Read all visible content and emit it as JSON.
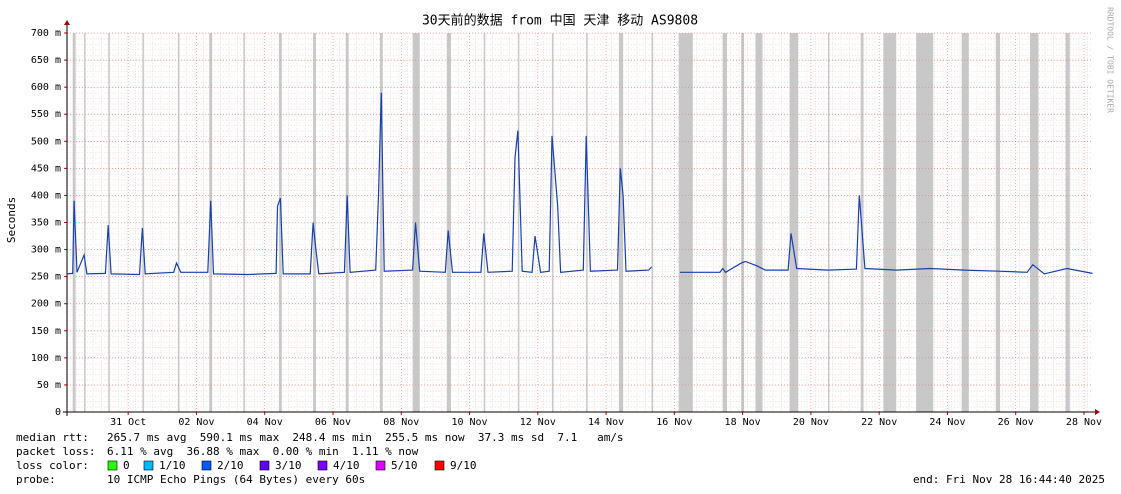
{
  "chart_data": {
    "type": "line",
    "title": "30天前的数据 from 中国 天津 移动 AS9808",
    "y_label": "Seconds",
    "side_text": "RRDTOOL / TOBI OETIKER",
    "xlim": [
      "2025-10-29T05:00",
      "2025-11-28T06:20"
    ],
    "ylim": [
      0,
      700
    ],
    "yticks": [
      0,
      {
        "value": 50,
        "label": "50 m"
      },
      {
        "value": 100,
        "label": "100 m"
      },
      {
        "value": 150,
        "label": "150 m"
      },
      {
        "value": 200,
        "label": "200 m"
      },
      {
        "value": 250,
        "label": "250 m"
      },
      {
        "value": 300,
        "label": "300 m"
      },
      {
        "value": 350,
        "label": "350 m"
      },
      {
        "value": 400,
        "label": "400 m"
      },
      {
        "value": 450,
        "label": "450 m"
      },
      {
        "value": 500,
        "label": "500 m"
      },
      {
        "value": 550,
        "label": "550 m"
      },
      {
        "value": 600,
        "label": "600 m"
      },
      {
        "value": 650,
        "label": "650 m"
      },
      {
        "value": 700,
        "label": "700 m"
      }
    ],
    "xticks": [
      {
        "value": "2025-10-31T00:00",
        "label": "31 Oct"
      },
      {
        "value": "2025-11-02T00:00",
        "label": "02 Nov"
      },
      {
        "value": "2025-11-04T00:00",
        "label": "04 Nov"
      },
      {
        "value": "2025-11-06T00:00",
        "label": "06 Nov"
      },
      {
        "value": "2025-11-08T00:00",
        "label": "08 Nov"
      },
      {
        "value": "2025-11-10T00:00",
        "label": "10 Nov"
      },
      {
        "value": "2025-11-12T00:00",
        "label": "12 Nov"
      },
      {
        "value": "2025-11-14T00:00",
        "label": "14 Nov"
      },
      {
        "value": "2025-11-16T00:00",
        "label": "16 Nov"
      },
      {
        "value": "2025-11-18T00:00",
        "label": "18 Nov"
      },
      {
        "value": "2025-11-20T00:00",
        "label": "20 Nov"
      },
      {
        "value": "2025-11-22T00:00",
        "label": "22 Nov"
      },
      {
        "value": "2025-11-24T00:00",
        "label": "24 Nov"
      },
      {
        "value": "2025-11-26T00:00",
        "label": "26 Nov"
      },
      {
        "value": "2025-11-28T00:00",
        "label": "28 Nov"
      }
    ],
    "grid": true,
    "band_color": "#c8c8c8",
    "gray_bands": [
      [
        "2025-10-29T09:00",
        "2025-10-29T11:00"
      ],
      [
        "2025-10-29T17:00",
        "2025-10-29T18:00"
      ],
      [
        "2025-10-30T10:00",
        "2025-10-30T11:00"
      ],
      [
        "2025-10-31T10:00",
        "2025-10-31T11:00"
      ],
      [
        "2025-11-01T11:00",
        "2025-11-01T12:00"
      ],
      [
        "2025-11-02T09:00",
        "2025-11-02T11:00"
      ],
      [
        "2025-11-03T09:00",
        "2025-11-03T10:00"
      ],
      [
        "2025-11-04T10:00",
        "2025-11-04T12:00"
      ],
      [
        "2025-11-05T10:00",
        "2025-11-05T12:00"
      ],
      [
        "2025-11-06T09:00",
        "2025-11-06T11:00"
      ],
      [
        "2025-11-07T09:00",
        "2025-11-07T11:00"
      ],
      [
        "2025-11-08T08:00",
        "2025-11-08T13:00"
      ],
      [
        "2025-11-09T08:00",
        "2025-11-09T11:00"
      ],
      [
        "2025-11-10T10:00",
        "2025-11-10T11:00"
      ],
      [
        "2025-11-11T10:00",
        "2025-11-11T11:00"
      ],
      [
        "2025-11-12T10:00",
        "2025-11-12T11:00"
      ],
      [
        "2025-11-13T10:00",
        "2025-11-13T11:00"
      ],
      [
        "2025-11-14T09:00",
        "2025-11-14T12:00"
      ],
      [
        "2025-11-15T08:00",
        "2025-11-15T09:00"
      ],
      [
        "2025-11-16T03:00",
        "2025-11-16T13:00"
      ],
      [
        "2025-11-17T10:00",
        "2025-11-17T13:00"
      ],
      [
        "2025-11-17T23:00",
        "2025-11-18T01:00"
      ],
      [
        "2025-11-18T09:00",
        "2025-11-18T14:00"
      ],
      [
        "2025-11-19T09:00",
        "2025-11-19T15:00"
      ],
      [
        "2025-11-20T12:00",
        "2025-11-20T13:00"
      ],
      [
        "2025-11-21T11:00",
        "2025-11-21T13:00"
      ],
      [
        "2025-11-22T03:00",
        "2025-11-22T12:00"
      ],
      [
        "2025-11-23T02:00",
        "2025-11-23T14:00"
      ],
      [
        "2025-11-24T10:00",
        "2025-11-24T15:00"
      ],
      [
        "2025-11-25T10:00",
        "2025-11-25T13:00"
      ],
      [
        "2025-11-26T10:00",
        "2025-11-26T16:00"
      ],
      [
        "2025-11-27T11:00",
        "2025-11-27T14:00"
      ]
    ],
    "x": [
      "2025-10-29T05:00",
      "2025-10-29T09:00",
      "2025-10-29T10:00",
      "2025-10-29T12:00",
      "2025-10-29T17:00",
      "2025-10-29T19:00",
      "2025-10-30T08:00",
      "2025-10-30T10:00",
      "2025-10-30T12:00",
      "2025-10-31T08:00",
      "2025-10-31T10:00",
      "2025-10-31T12:00",
      "2025-11-01T08:00",
      "2025-11-01T10:00",
      "2025-11-01T13:00",
      "2025-11-02T08:00",
      "2025-11-02T10:00",
      "2025-11-02T12:00",
      "2025-11-03T12:00",
      "2025-11-04T08:00",
      "2025-11-04T09:00",
      "2025-11-04T11:00",
      "2025-11-04T13:00",
      "2025-11-05T08:00",
      "2025-11-05T10:00",
      "2025-11-05T12:00",
      "2025-11-05T14:00",
      "2025-11-06T08:00",
      "2025-11-06T10:00",
      "2025-11-06T12:00",
      "2025-11-07T06:00",
      "2025-11-07T08:00",
      "2025-11-07T10:00",
      "2025-11-07T12:00",
      "2025-11-08T08:00",
      "2025-11-08T10:00",
      "2025-11-08T13:00",
      "2025-11-09T07:00",
      "2025-11-09T09:00",
      "2025-11-09T12:00",
      "2025-11-10T08:00",
      "2025-11-10T10:00",
      "2025-11-10T13:00",
      "2025-11-11T06:00",
      "2025-11-11T08:00",
      "2025-11-11T10:00",
      "2025-11-11T13:00",
      "2025-11-11T20:00",
      "2025-11-11T22:00",
      "2025-11-12T02:00",
      "2025-11-12T08:00",
      "2025-11-12T10:00",
      "2025-11-12T14:00",
      "2025-11-12T16:00",
      "2025-11-13T08:00",
      "2025-11-13T10:00",
      "2025-11-13T13:00",
      "2025-11-14T08:00",
      "2025-11-14T10:00",
      "2025-11-14T12:00",
      "2025-11-14T14:00",
      "2025-11-15T06:00",
      "2025-11-15T08:00",
      "2025-11-15T12:00",
      "2025-11-16T04:00",
      "2025-11-17T08:00",
      "2025-11-17T10:00",
      "2025-11-17T12:00",
      "2025-11-17T23:00",
      "2025-11-18T02:00",
      "2025-11-18T10:00",
      "2025-11-18T16:00",
      "2025-11-19T08:00",
      "2025-11-19T10:00",
      "2025-11-19T14:00",
      "2025-11-20T12:00",
      "2025-11-21T08:00",
      "2025-11-21T10:00",
      "2025-11-21T14:00",
      "2025-11-22T12:00",
      "2025-11-23T12:00",
      "2025-11-24T12:00",
      "2025-11-25T12:00",
      "2025-11-26T08:00",
      "2025-11-26T12:00",
      "2025-11-26T20:00",
      "2025-11-27T12:00",
      "2025-11-28T06:00"
    ],
    "series": [
      {
        "name": "median rtt:",
        "color": "#1740b0",
        "values": [
          255,
          256,
          390,
          258,
          290,
          255,
          256,
          345,
          255,
          254,
          340,
          255,
          258,
          275,
          258,
          258,
          390,
          255,
          254,
          256,
          380,
          395,
          255,
          255,
          350,
          300,
          255,
          258,
          400,
          258,
          262,
          400,
          590,
          260,
          262,
          350,
          260,
          258,
          335,
          258,
          258,
          330,
          258,
          260,
          470,
          520,
          260,
          258,
          325,
          258,
          260,
          510,
          380,
          258,
          262,
          510,
          260,
          262,
          450,
          400,
          260,
          262,
          268,
          null,
          258,
          258,
          265,
          258,
          275,
          278,
          270,
          262,
          262,
          330,
          265,
          262,
          264,
          400,
          265,
          262,
          265,
          262,
          260,
          258,
          272,
          255,
          265,
          256
        ]
      }
    ],
    "stats": [
      "265.7 ms avg  590.1 ms max  248.4 ms min  255.5 ms now  37.3 ms sd  7.1   am/s"
    ],
    "packet_loss_label": "packet loss:",
    "packet_loss": "6.11 % avg  36.88 % max  0.00 % min  1.11 % now",
    "loss_color_label": "loss color:",
    "loss_colors": [
      {
        "label": "0",
        "color": "#26ff00"
      },
      {
        "label": "1/10",
        "color": "#00b8ff"
      },
      {
        "label": "2/10",
        "color": "#0059ff"
      },
      {
        "label": "3/10",
        "color": "#5e00ff"
      },
      {
        "label": "4/10",
        "color": "#7e00ff"
      },
      {
        "label": "5/10",
        "color": "#dd00ff"
      },
      {
        "label": "9/10",
        "color": "#ff0000"
      }
    ],
    "probe_label": "probe:",
    "probe": "10 ICMP Echo Pings (64 Bytes) every 60s",
    "end": "end: Fri Nov 28 16:44:40 2025"
  }
}
